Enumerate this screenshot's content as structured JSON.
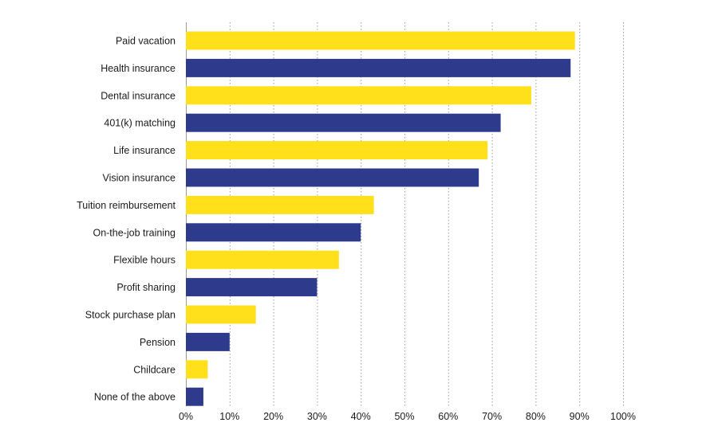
{
  "chart_data": {
    "type": "bar",
    "orientation": "horizontal",
    "categories": [
      "Paid vacation",
      "Health insurance",
      "Dental insurance",
      "401(k) matching",
      "Life insurance",
      "Vision insurance",
      "Tuition reimbursement",
      "On-the-job training",
      "Flexible hours",
      "Profit sharing",
      "Stock purchase plan",
      "Pension",
      "Childcare",
      "None of the above"
    ],
    "values": [
      89,
      88,
      79,
      72,
      69,
      67,
      43,
      40,
      35,
      30,
      16,
      10,
      5,
      4
    ],
    "xlim": [
      0,
      100
    ],
    "x_ticks": [
      0,
      10,
      20,
      30,
      40,
      50,
      60,
      70,
      80,
      90,
      100
    ],
    "x_tick_labels": [
      "0%",
      "10%",
      "20%",
      "30%",
      "40%",
      "50%",
      "60%",
      "70%",
      "80%",
      "90%",
      "100%"
    ],
    "grid": true,
    "title": "",
    "xlabel": "",
    "ylabel": "",
    "colors": {
      "bar_alternating": [
        "#FFE01B",
        "#2E3A8C"
      ],
      "grid": "#9a9a9a",
      "text": "#1a1a1a"
    }
  }
}
